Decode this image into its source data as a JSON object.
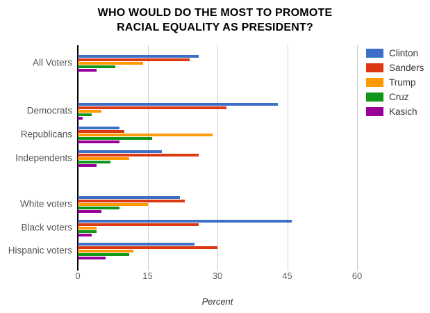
{
  "title": {
    "line1": "WHO WOULD DO THE MOST TO PROMOTE",
    "line2": "RACIAL EQUALITY AS PRESIDENT?"
  },
  "chart_data": {
    "type": "bar",
    "orientation": "horizontal",
    "title": "WHO WOULD DO THE MOST TO PROMOTE RACIAL EQUALITY AS PRESIDENT?",
    "xlabel": "Percent",
    "xlim": [
      0,
      60
    ],
    "xticks": [
      0,
      15,
      30,
      45,
      60
    ],
    "grid": true,
    "legend_position": "right",
    "categories": [
      "All Voters",
      "Democrats",
      "Republicans",
      "Independents",
      "White voters",
      "Black voters",
      "Hispanic voters"
    ],
    "series": [
      {
        "name": "Clinton",
        "color": "#3D6FC8",
        "values": [
          26,
          43,
          9,
          18,
          22,
          46,
          25
        ]
      },
      {
        "name": "Sanders",
        "color": "#DC3912",
        "values": [
          24,
          32,
          10,
          26,
          23,
          26,
          30
        ]
      },
      {
        "name": "Trump",
        "color": "#FF9900",
        "values": [
          14,
          5,
          29,
          11,
          15,
          4,
          12
        ]
      },
      {
        "name": "Cruz",
        "color": "#109618",
        "values": [
          8,
          3,
          16,
          7,
          9,
          4,
          11
        ]
      },
      {
        "name": "Kasich",
        "color": "#990099",
        "values": [
          4,
          1,
          9,
          4,
          5,
          3,
          6
        ]
      }
    ]
  }
}
